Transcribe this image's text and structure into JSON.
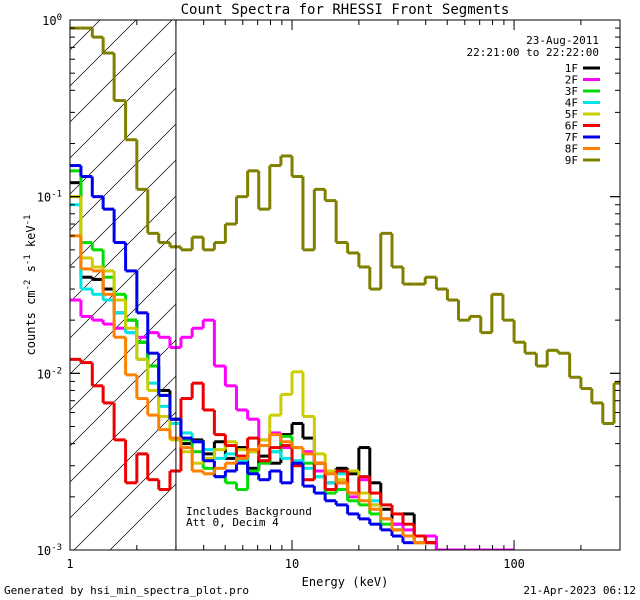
{
  "chart_data": {
    "type": "line",
    "title": "Count Spectra for RHESSI Front Segments",
    "xlabel": "Energy (keV)",
    "ylabel": "counts cm-2 s-1 keV-1",
    "xscale": "log",
    "yscale": "log",
    "xlim": [
      1,
      300
    ],
    "ylim": [
      0.001,
      1
    ],
    "x_ticks": [
      {
        "value": 1,
        "label": "1"
      },
      {
        "value": 10,
        "label": "10"
      },
      {
        "value": 100,
        "label": "100"
      }
    ],
    "y_ticks": [
      {
        "value": 1,
        "base": "10",
        "exp": "0"
      },
      {
        "value": 0.1,
        "base": "10",
        "exp": "-1"
      },
      {
        "value": 0.01,
        "base": "10",
        "exp": "-2"
      },
      {
        "value": 0.001,
        "base": "10",
        "exp": "-3"
      }
    ],
    "shaded_region": [
      1,
      3
    ],
    "date": "23-Aug-2011",
    "time_range": "22:21:00 to 22:22:00",
    "annotation_lines": [
      "Includes Background",
      "Att 0, Decim 4"
    ],
    "legend_position": "top-right",
    "series": [
      {
        "name": "1F",
        "color": "#000000",
        "x": [
          1.0,
          1.12,
          1.26,
          1.41,
          1.58,
          1.78,
          2.0,
          2.24,
          2.51,
          2.82,
          3.16,
          3.55,
          3.98,
          4.47,
          5.01,
          5.62,
          6.31,
          7.08,
          7.94,
          8.91,
          10.0,
          11.2,
          12.6,
          14.1,
          15.8,
          17.8,
          20.0,
          22.4,
          25.1,
          28.2,
          31.6,
          35.5,
          39.8,
          44.7,
          50.1
        ],
        "y": [
          0.12,
          0.035,
          0.034,
          0.03,
          0.022,
          0.02,
          0.015,
          0.011,
          0.008,
          0.0055,
          0.004,
          0.0042,
          0.0035,
          0.0041,
          0.0033,
          0.0038,
          0.0029,
          0.0034,
          0.0031,
          0.0045,
          0.0052,
          0.0043,
          0.0031,
          0.0024,
          0.0029,
          0.0027,
          0.0038,
          0.0024,
          0.0017,
          0.0014,
          0.0016,
          0.0012,
          0.0011,
          0.001,
          0.001
        ]
      },
      {
        "name": "2F",
        "color": "#ff00ff",
        "x": [
          1.0,
          1.12,
          1.26,
          1.41,
          1.58,
          1.78,
          2.0,
          2.24,
          2.51,
          2.82,
          3.16,
          3.55,
          3.98,
          4.47,
          5.01,
          5.62,
          6.31,
          7.08,
          7.94,
          8.91,
          10.0,
          11.2,
          12.6,
          14.1,
          15.8,
          17.8,
          20.0,
          22.4,
          25.1,
          28.2,
          31.6,
          35.5,
          39.8,
          44.7,
          50.1,
          56.2,
          63.1,
          70.8,
          79.4,
          89.1
        ],
        "y": [
          0.026,
          0.021,
          0.02,
          0.019,
          0.018,
          0.017,
          0.016,
          0.017,
          0.016,
          0.014,
          0.016,
          0.018,
          0.02,
          0.011,
          0.0085,
          0.0062,
          0.0055,
          0.0042,
          0.0046,
          0.0038,
          0.0032,
          0.0036,
          0.0028,
          0.0022,
          0.0024,
          0.002,
          0.0025,
          0.0018,
          0.0015,
          0.0014,
          0.0013,
          0.0011,
          0.0012,
          0.001,
          0.001,
          0.001,
          0.001,
          0.001,
          0.001,
          0.001
        ]
      },
      {
        "name": "3F",
        "color": "#00dd00",
        "x": [
          1.0,
          1.12,
          1.26,
          1.41,
          1.58,
          1.78,
          2.0,
          2.24,
          2.51,
          2.82,
          3.16,
          3.55,
          3.98,
          4.47,
          5.01,
          5.62,
          6.31,
          7.08,
          7.94,
          8.91,
          10.0,
          11.2,
          12.6,
          14.1,
          15.8,
          17.8,
          20.0,
          22.4,
          25.1,
          28.2,
          31.6,
          35.5
        ],
        "y": [
          0.14,
          0.055,
          0.05,
          0.035,
          0.028,
          0.02,
          0.015,
          0.011,
          0.0075,
          0.0055,
          0.0042,
          0.0036,
          0.0029,
          0.0026,
          0.0024,
          0.0022,
          0.0028,
          0.0031,
          0.0036,
          0.0044,
          0.0038,
          0.0031,
          0.0026,
          0.0021,
          0.0022,
          0.0019,
          0.0018,
          0.0016,
          0.0014,
          0.0013,
          0.0012,
          0.0011
        ]
      },
      {
        "name": "4F",
        "color": "#00e5e5",
        "x": [
          1.0,
          1.12,
          1.26,
          1.41,
          1.58,
          1.78,
          2.0,
          2.24,
          2.51,
          2.82,
          3.16,
          3.55,
          3.98,
          4.47,
          5.01,
          5.62,
          6.31,
          7.08,
          7.94,
          8.91,
          10.0,
          11.2,
          12.6,
          14.1,
          15.8,
          17.8,
          20.0,
          22.4,
          25.1,
          28.2
        ],
        "y": [
          0.09,
          0.03,
          0.028,
          0.026,
          0.022,
          0.017,
          0.012,
          0.0088,
          0.0065,
          0.0052,
          0.0046,
          0.0041,
          0.0037,
          0.0033,
          0.0035,
          0.0032,
          0.0036,
          0.0039,
          0.0036,
          0.0033,
          0.0032,
          0.0029,
          0.0026,
          0.0024,
          0.0027,
          0.0028,
          0.0026,
          0.0019,
          0.0015,
          0.0013
        ]
      },
      {
        "name": "5F",
        "color": "#cccc00",
        "x": [
          1.0,
          1.12,
          1.26,
          1.41,
          1.58,
          1.78,
          2.0,
          2.24,
          2.51,
          2.82,
          3.16,
          3.55,
          3.98,
          4.47,
          5.01,
          5.62,
          6.31,
          7.08,
          7.94,
          8.91,
          10.0,
          11.2,
          12.6,
          14.1,
          15.8,
          17.8,
          20.0,
          22.4,
          25.1,
          28.2,
          31.6,
          35.5
        ],
        "y": [
          0.1,
          0.045,
          0.04,
          0.038,
          0.026,
          0.018,
          0.012,
          0.008,
          0.0057,
          0.0042,
          0.0036,
          0.0031,
          0.0033,
          0.0037,
          0.0041,
          0.0037,
          0.0036,
          0.0042,
          0.0058,
          0.0076,
          0.0102,
          0.0057,
          0.0035,
          0.0028,
          0.0025,
          0.0028,
          0.0021,
          0.0018,
          0.0015,
          0.0013,
          0.0012,
          0.0011
        ]
      },
      {
        "name": "6F",
        "color": "#ee0000",
        "x": [
          1.0,
          1.12,
          1.26,
          1.41,
          1.58,
          1.78,
          2.0,
          2.24,
          2.51,
          2.82,
          3.16,
          3.55,
          3.98,
          4.47,
          5.01,
          5.62,
          6.31,
          7.08,
          7.94,
          8.91,
          10.0,
          11.2,
          12.6,
          14.1,
          15.8,
          17.8,
          20.0,
          22.4,
          25.1,
          28.2,
          31.6,
          35.5,
          39.8
        ],
        "y": [
          0.012,
          0.0115,
          0.0085,
          0.0068,
          0.0042,
          0.0024,
          0.0035,
          0.0025,
          0.0022,
          0.0028,
          0.0072,
          0.0088,
          0.0062,
          0.0045,
          0.0039,
          0.0034,
          0.0043,
          0.0032,
          0.0038,
          0.0039,
          0.003,
          0.0025,
          0.0031,
          0.0022,
          0.0028,
          0.0021,
          0.0026,
          0.0021,
          0.0018,
          0.0016,
          0.0014,
          0.0012,
          0.0011
        ]
      },
      {
        "name": "7F",
        "color": "#0000ee",
        "x": [
          1.0,
          1.12,
          1.26,
          1.41,
          1.58,
          1.78,
          2.0,
          2.24,
          2.51,
          2.82,
          3.16,
          3.55,
          3.98,
          4.47,
          5.01,
          5.62,
          6.31,
          7.08,
          7.94,
          8.91,
          10.0,
          11.2,
          12.6,
          14.1,
          15.8,
          17.8,
          20.0,
          22.4,
          25.1,
          28.2,
          31.6
        ],
        "y": [
          0.15,
          0.13,
          0.1,
          0.085,
          0.055,
          0.038,
          0.022,
          0.013,
          0.0075,
          0.0055,
          0.0043,
          0.0041,
          0.0032,
          0.0026,
          0.0028,
          0.0031,
          0.0027,
          0.0025,
          0.0028,
          0.0024,
          0.0031,
          0.0023,
          0.0021,
          0.0019,
          0.0018,
          0.0016,
          0.0015,
          0.0014,
          0.0013,
          0.0012,
          0.0011
        ]
      },
      {
        "name": "8F",
        "color": "#ff8000",
        "x": [
          1.0,
          1.12,
          1.26,
          1.41,
          1.58,
          1.78,
          2.0,
          2.24,
          2.51,
          2.82,
          3.16,
          3.55,
          3.98,
          4.47,
          5.01,
          5.62,
          6.31,
          7.08,
          7.94,
          8.91,
          10.0,
          11.2,
          12.6,
          14.1,
          15.8,
          17.8,
          20.0,
          22.4,
          25.1,
          28.2,
          31.6,
          35.5
        ],
        "y": [
          0.06,
          0.039,
          0.038,
          0.028,
          0.016,
          0.0098,
          0.0072,
          0.0058,
          0.0048,
          0.0043,
          0.0038,
          0.0028,
          0.0027,
          0.0029,
          0.0031,
          0.0033,
          0.0037,
          0.0039,
          0.0045,
          0.0041,
          0.0038,
          0.0035,
          0.0031,
          0.0027,
          0.0024,
          0.0021,
          0.0019,
          0.0017,
          0.0015,
          0.0013,
          0.0012,
          0.0011
        ]
      },
      {
        "name": "9F",
        "color": "#808000",
        "x": [
          1.0,
          1.12,
          1.26,
          1.41,
          1.58,
          1.78,
          2.0,
          2.24,
          2.51,
          2.82,
          3.16,
          3.55,
          3.98,
          4.47,
          5.01,
          5.62,
          6.31,
          7.08,
          7.94,
          8.91,
          10.0,
          11.2,
          12.6,
          14.1,
          15.8,
          17.8,
          20.0,
          22.4,
          25.1,
          28.2,
          31.6,
          35.5,
          39.8,
          44.7,
          50.1,
          56.2,
          63.1,
          70.8,
          79.4,
          89.1,
          100,
          112,
          126,
          141,
          158,
          178,
          200,
          224,
          251,
          282
        ],
        "y": [
          0.9,
          0.9,
          0.8,
          0.65,
          0.35,
          0.21,
          0.11,
          0.062,
          0.055,
          0.052,
          0.05,
          0.059,
          0.05,
          0.055,
          0.07,
          0.1,
          0.14,
          0.085,
          0.15,
          0.17,
          0.13,
          0.05,
          0.11,
          0.095,
          0.055,
          0.048,
          0.04,
          0.03,
          0.062,
          0.04,
          0.032,
          0.032,
          0.035,
          0.03,
          0.026,
          0.02,
          0.021,
          0.017,
          0.028,
          0.02,
          0.015,
          0.013,
          0.011,
          0.0135,
          0.013,
          0.0095,
          0.0082,
          0.0068,
          0.0052,
          0.0088
        ]
      }
    ]
  },
  "footer": {
    "generated_by": "Generated by hsi_min_spectra_plot.pro",
    "timestamp": "21-Apr-2023 06:12"
  }
}
